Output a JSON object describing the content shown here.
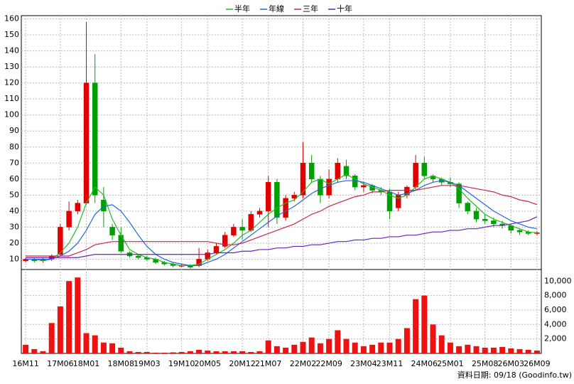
{
  "chart_data": {
    "type": "candlestick",
    "categories": [
      "16M11",
      null,
      null,
      null,
      "17M06",
      null,
      null,
      "18M01",
      null,
      null,
      null,
      "18M08",
      null,
      null,
      "19M03",
      null,
      null,
      null,
      "19M10",
      null,
      null,
      "20M05",
      null,
      null,
      null,
      "20M12",
      null,
      null,
      "21M07",
      null,
      null,
      null,
      "22M02",
      null,
      null,
      "22M09",
      null,
      null,
      null,
      "23M04",
      null,
      null,
      "23M11",
      null,
      null,
      null,
      "24M06",
      null,
      null,
      "25M01",
      null,
      null,
      null,
      "25M08",
      null,
      null,
      "26M03",
      null,
      null,
      "26M09"
    ],
    "open": [
      9,
      10,
      9,
      10,
      13,
      30,
      40,
      45,
      120,
      47,
      30,
      25,
      14,
      12,
      11,
      10,
      8,
      7,
      6,
      6,
      6,
      10,
      14,
      18,
      25,
      30,
      28,
      38,
      40,
      58,
      36,
      48,
      50,
      70,
      60,
      50,
      60,
      68,
      62,
      55,
      56,
      53,
      52,
      42,
      50,
      55,
      70,
      62,
      60,
      58,
      57,
      45,
      40,
      35,
      34,
      32,
      31,
      28,
      27,
      26
    ],
    "high": [
      11,
      11,
      11,
      13,
      32,
      46,
      47,
      158,
      138,
      55,
      32,
      30,
      15,
      13,
      12,
      11,
      9,
      8,
      7,
      7,
      17,
      16,
      20,
      27,
      32,
      35,
      40,
      42,
      62,
      60,
      50,
      52,
      83,
      75,
      62,
      66,
      73,
      72,
      63,
      58,
      57,
      55,
      54,
      52,
      56,
      75,
      74,
      63,
      61,
      61,
      58,
      46,
      42,
      38,
      36,
      34,
      32,
      29,
      28,
      27.5
    ],
    "low": [
      8,
      8,
      8,
      9,
      12,
      28,
      38,
      44,
      45,
      30,
      22,
      14,
      11,
      10,
      9,
      7,
      6,
      5,
      5,
      4,
      5,
      9,
      13,
      17,
      24,
      22,
      27,
      36,
      30,
      32,
      34,
      46,
      48,
      58,
      45,
      48,
      58,
      60,
      53,
      52,
      51,
      50,
      35,
      40,
      48,
      53,
      60,
      58,
      56,
      55,
      42,
      38,
      33,
      32,
      30,
      29,
      26,
      25,
      25,
      25
    ],
    "close": [
      10,
      9,
      10,
      12,
      30,
      40,
      45,
      120,
      50,
      40,
      25,
      15,
      12,
      11,
      10,
      8,
      7,
      6,
      6,
      5,
      10,
      14,
      18,
      25,
      30,
      28,
      38,
      40,
      58,
      36,
      48,
      50,
      70,
      60,
      50,
      60,
      70,
      62,
      55,
      56,
      53,
      52,
      40,
      50,
      55,
      70,
      62,
      60,
      58,
      57,
      45,
      40,
      35,
      34,
      32,
      31,
      28,
      27,
      26,
      26.5
    ],
    "up_color": "#e00000",
    "down_color": "#00a000",
    "ylim": [
      4,
      162
    ],
    "yticks": [
      10,
      20,
      30,
      40,
      50,
      60,
      70,
      80,
      90,
      100,
      110,
      120,
      130,
      140,
      150,
      160
    ],
    "grid": true,
    "lines": [
      {
        "name": "半年",
        "color": "#22bb22",
        "values": [
          10,
          10,
          9,
          10,
          14,
          20,
          30,
          45,
          55,
          50,
          35,
          25,
          16,
          13,
          11,
          10,
          8,
          7,
          6,
          6,
          7,
          10,
          13,
          16,
          20,
          25,
          28,
          33,
          38,
          42,
          45,
          47,
          52,
          58,
          60,
          57,
          60,
          63,
          60,
          57,
          55,
          53,
          50,
          48,
          50,
          55,
          60,
          62,
          60,
          58,
          54,
          48,
          43,
          38,
          35,
          33,
          31,
          29,
          27,
          26.5
        ]
      },
      {
        "name": "年線",
        "color": "#2266dd",
        "values": [
          10,
          10,
          10,
          10,
          12,
          15,
          20,
          28,
          38,
          43,
          44,
          40,
          33,
          25,
          18,
          13,
          10,
          8,
          7,
          6,
          6,
          8,
          10,
          13,
          17,
          21,
          25,
          29,
          33,
          37,
          40,
          43,
          47,
          51,
          54,
          56,
          58,
          59,
          59,
          58,
          56,
          54,
          52,
          50,
          51,
          53,
          56,
          58,
          59,
          58,
          56,
          52,
          48,
          44,
          40,
          37,
          34,
          32,
          30,
          29
        ]
      },
      {
        "name": "三年",
        "color": "#cc2255",
        "values": [
          12,
          12,
          12,
          12,
          12,
          12,
          14,
          16,
          19,
          20,
          21,
          21,
          21,
          21,
          21,
          21,
          21,
          21,
          21,
          21,
          21,
          21,
          20,
          19,
          19,
          20,
          22,
          24,
          26,
          28,
          30,
          32,
          35,
          38,
          40,
          43,
          45,
          47,
          49,
          50,
          52,
          52,
          53,
          53,
          53,
          53,
          54,
          55,
          56,
          56,
          56,
          55,
          54,
          53,
          52,
          50,
          49,
          47,
          46,
          44
        ]
      },
      {
        "name": "十年",
        "color": "#6622bb",
        "values": [
          11,
          11,
          11,
          11,
          11,
          11,
          11,
          12,
          13,
          13,
          13,
          13,
          13,
          13,
          13,
          13,
          13,
          13,
          13,
          13,
          13,
          13,
          14,
          14,
          14,
          15,
          15,
          16,
          16,
          17,
          17,
          18,
          18,
          19,
          19,
          20,
          21,
          21,
          22,
          22,
          23,
          23,
          24,
          24,
          25,
          25,
          26,
          27,
          27,
          28,
          28,
          29,
          29,
          30,
          31,
          31,
          32,
          33,
          34,
          36.5
        ]
      }
    ],
    "volume": {
      "color": "#ee1111",
      "ylim": [
        0,
        11500
      ],
      "yticks": [
        {
          "value": 2000,
          "label": "2,000"
        },
        {
          "value": 4000,
          "label": "4,000"
        },
        {
          "value": 6000,
          "label": "6,000"
        },
        {
          "value": 8000,
          "label": "8,000"
        },
        {
          "value": 10000,
          "label": "10,000"
        }
      ],
      "values": [
        1200,
        600,
        300,
        4200,
        6500,
        10000,
        10500,
        2800,
        2500,
        1500,
        1400,
        800,
        300,
        200,
        200,
        100,
        100,
        150,
        200,
        300,
        500,
        400,
        300,
        300,
        300,
        300,
        200,
        300,
        1800,
        1000,
        800,
        1200,
        1600,
        2200,
        1400,
        2000,
        3200,
        2000,
        1500,
        1000,
        1200,
        1500,
        1500,
        2000,
        3500,
        7500,
        8000,
        4000,
        2500,
        1500,
        1000,
        1200,
        1000,
        800,
        800,
        900,
        700,
        600,
        500,
        400
      ]
    },
    "footer": "資料日期: 09/18 (Goodinfo.tw)"
  }
}
